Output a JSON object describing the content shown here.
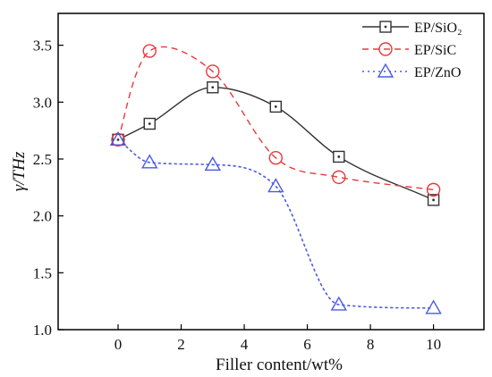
{
  "chart_data": {
    "type": "line",
    "title": "",
    "xlabel": "Filler content/wt%",
    "ylabel": "γ/THz",
    "xlim": [
      -1.9,
      11.6
    ],
    "ylim": [
      1.0,
      3.78
    ],
    "xticks": [
      0,
      2,
      4,
      6,
      8,
      10
    ],
    "yticks": [
      1.0,
      1.5,
      2.0,
      2.5,
      3.0,
      3.5
    ],
    "ytick_labels": [
      "1.0",
      "1.5",
      "2.0",
      "2.5",
      "3.0",
      "3.5"
    ],
    "grid": false,
    "legend_position": "top-right",
    "series": [
      {
        "name": "EP/SiO₂",
        "color": "#333333",
        "line_style": "solid",
        "marker": "square",
        "x": [
          0,
          1,
          3,
          5,
          7,
          10
        ],
        "y": [
          2.67,
          2.81,
          3.13,
          2.96,
          2.52,
          2.14
        ]
      },
      {
        "name": "EP/SiC",
        "color": "#e8383d",
        "line_style": "dashed",
        "marker": "circle",
        "x": [
          0,
          1,
          3,
          5,
          7,
          10
        ],
        "y": [
          2.67,
          3.45,
          3.27,
          2.51,
          2.34,
          2.23
        ]
      },
      {
        "name": "EP/ZnO",
        "color": "#4a5ae8",
        "line_style": "dotted",
        "marker": "triangle",
        "x": [
          0,
          1,
          3,
          5,
          7,
          10
        ],
        "y": [
          2.67,
          2.47,
          2.45,
          2.26,
          1.22,
          1.19
        ]
      }
    ]
  }
}
